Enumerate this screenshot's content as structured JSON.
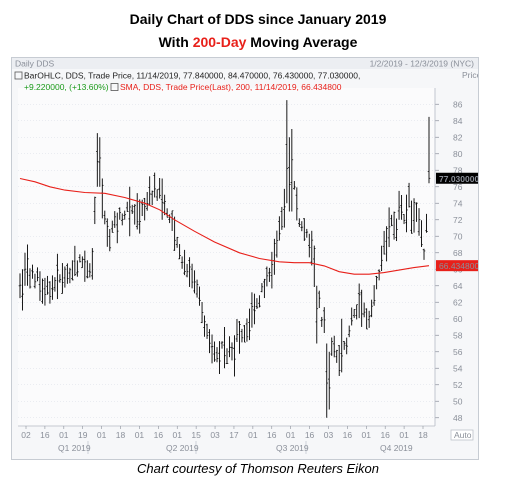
{
  "title_line1": "Daily Chart of DDS since January 2019",
  "title_line2_prefix": "With ",
  "title_line2_highlight": "200-Day",
  "title_line2_suffix": " Moving Average",
  "caption": "Chart courtesy of Thomson Reuters Eikon",
  "colors": {
    "bars": "#000000",
    "sma": "#e8201a",
    "legend_green": "#1a9a1a",
    "last_price_box": "#000000",
    "sma_box": "#e8201a",
    "panel_bg": "#f6f7f9",
    "grid": "#d8dde6"
  },
  "chart_data": {
    "type": "ohlc-bar-with-moving-average",
    "header_left": "Daily DDS",
    "header_right": "1/2/2019 - 12/3/2019 (NYC)",
    "y_axis_title": "Price",
    "y_axis_unit": "USD",
    "ylim": [
      47,
      87
    ],
    "y_ticks": [
      48,
      50,
      52,
      54,
      56,
      58,
      60,
      62,
      64,
      66,
      68,
      70,
      72,
      74,
      76,
      78,
      80,
      82,
      84,
      86
    ],
    "auto_label": "Auto",
    "legend": {
      "bar_line": "BarOHLC, DDS, Trade Price, 11/14/2019, 77.840000, 84.470000, 76.430000, 77.030000,",
      "change_line": "+9.220000, (+13.60%)",
      "sma_line": "SMA, DDS, Trade Price(Last),  200,  11/14/2019, 66.434800"
    },
    "last_price": 77.03,
    "last_price_label": "77.030000",
    "sma_last": 66.4348,
    "sma_last_label": "66.434800",
    "x_day_labels": [
      "02",
      "16",
      "01",
      "19",
      "01",
      "18",
      "01",
      "16",
      "01",
      "15",
      "03",
      "17",
      "01",
      "16",
      "01",
      "16",
      "03",
      "16",
      "01",
      "16",
      "01",
      "18"
    ],
    "x_quarter_labels": [
      "Q1 2019",
      "Q2 2019",
      "Q3 2019",
      "Q4 2019"
    ],
    "series": [
      {
        "name": "BarOHLC, DDS, Trade Price",
        "kind": "ohlc",
        "anchors": [
          [
            0,
            63
          ],
          [
            5,
            65.5
          ],
          [
            10,
            63.5
          ],
          [
            15,
            64.5
          ],
          [
            20,
            66
          ],
          [
            25,
            67
          ],
          [
            29,
            66.5
          ],
          [
            31,
            79
          ],
          [
            33,
            74.5
          ],
          [
            35,
            70
          ],
          [
            38,
            71.5
          ],
          [
            42,
            73
          ],
          [
            46,
            72.5
          ],
          [
            50,
            74
          ],
          [
            54,
            76
          ],
          [
            58,
            74
          ],
          [
            61,
            71
          ],
          [
            64,
            68
          ],
          [
            68,
            66
          ],
          [
            72,
            63
          ],
          [
            75,
            58
          ],
          [
            79,
            56
          ],
          [
            83,
            56.5
          ],
          [
            87,
            57.5
          ],
          [
            91,
            59
          ],
          [
            95,
            62
          ],
          [
            99,
            65
          ],
          [
            103,
            68
          ],
          [
            107,
            76
          ],
          [
            109,
            78
          ],
          [
            112,
            72
          ],
          [
            116,
            69
          ],
          [
            119,
            66
          ],
          [
            121,
            60
          ],
          [
            125,
            56
          ],
          [
            129,
            55
          ],
          [
            133,
            60
          ],
          [
            137,
            62
          ],
          [
            140,
            60
          ],
          [
            143,
            64
          ],
          [
            146,
            69
          ],
          [
            150,
            72
          ],
          [
            153,
            70
          ],
          [
            156,
            74
          ],
          [
            160,
            72
          ],
          [
            162,
            68
          ],
          [
            164,
            77
          ]
        ],
        "ranges": [
          [
            0,
            62.5,
            65.5
          ],
          [
            1,
            61,
            66
          ],
          [
            2,
            64,
            68
          ],
          [
            3,
            64,
            69
          ],
          [
            31,
            76,
            82.5
          ],
          [
            32,
            76,
            82
          ],
          [
            44,
            70,
            76
          ],
          [
            57,
            72,
            77
          ],
          [
            82,
            54,
            59
          ],
          [
            86,
            53,
            58
          ],
          [
            107,
            74,
            86.5
          ],
          [
            108,
            73,
            82
          ],
          [
            109,
            73,
            83
          ],
          [
            119,
            57,
            64
          ],
          [
            123,
            48,
            57
          ],
          [
            124,
            49,
            56
          ],
          [
            129,
            53.5,
            60
          ],
          [
            152,
            72,
            75.5
          ],
          [
            153,
            72,
            75
          ],
          [
            164,
            77,
            84.5
          ]
        ],
        "last_bar": {
          "date": "11/14/2019",
          "open": 77.84,
          "high": 84.47,
          "low": 76.43,
          "close": 77.03
        }
      },
      {
        "name": "SMA, DDS, Trade Price(Last), 200",
        "kind": "line",
        "points": [
          [
            0,
            77
          ],
          [
            6,
            76.6
          ],
          [
            12,
            76
          ],
          [
            18,
            75.6
          ],
          [
            26,
            75.3
          ],
          [
            34,
            75.2
          ],
          [
            42,
            74.7
          ],
          [
            50,
            74
          ],
          [
            56,
            73.2
          ],
          [
            62,
            72
          ],
          [
            70,
            70.6
          ],
          [
            78,
            69.3
          ],
          [
            88,
            68
          ],
          [
            96,
            67.3
          ],
          [
            104,
            66.9
          ],
          [
            110,
            66.8
          ],
          [
            116,
            66.8
          ],
          [
            122,
            66.4
          ],
          [
            128,
            65.7
          ],
          [
            134,
            65.4
          ],
          [
            140,
            65.4
          ],
          [
            146,
            65.6
          ],
          [
            152,
            65.9
          ],
          [
            158,
            66.2
          ],
          [
            164,
            66.43
          ]
        ]
      }
    ]
  }
}
